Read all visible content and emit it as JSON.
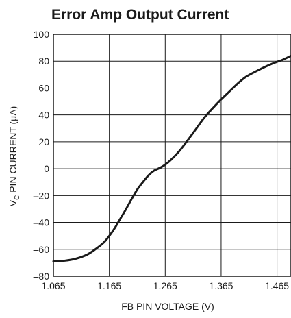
{
  "chart_data": {
    "type": "line",
    "title": "Error Amp Output Current",
    "xlabel": "FB PIN VOLTAGE (V)",
    "ylabel": {
      "prefix": "V",
      "subscript": "C",
      "suffix": " PIN CURRENT (μA)"
    },
    "xlim": [
      1.065,
      1.49
    ],
    "ylim": [
      -80,
      100
    ],
    "xticks": [
      1.065,
      1.165,
      1.265,
      1.365,
      1.465
    ],
    "xtick_labels": [
      "1.065",
      "1.165",
      "1.265",
      "1.365",
      "1.465"
    ],
    "yticks": [
      -80,
      -60,
      -40,
      -20,
      0,
      20,
      40,
      60,
      80,
      100
    ],
    "ytick_labels": [
      "–80",
      "–60",
      "–40",
      "–20",
      "0",
      "20",
      "40",
      "60",
      "80",
      "100"
    ],
    "grid": true,
    "series": [
      {
        "x": [
          1.065,
          1.085,
          1.105,
          1.125,
          1.14,
          1.155,
          1.165,
          1.175,
          1.185,
          1.195,
          1.205,
          1.215,
          1.225,
          1.235,
          1.245,
          1.255,
          1.265,
          1.275,
          1.29,
          1.305,
          1.32,
          1.335,
          1.35,
          1.365,
          1.38,
          1.395,
          1.41,
          1.43,
          1.45,
          1.465,
          1.475,
          1.49
        ],
        "y": [
          -69,
          -68.5,
          -67,
          -64,
          -60,
          -55,
          -50,
          -44,
          -37,
          -30,
          -22.5,
          -15.5,
          -10,
          -5,
          -1.5,
          0.5,
          3,
          6.5,
          13,
          21,
          29.5,
          38,
          45,
          51.5,
          57.5,
          63.5,
          68.5,
          73,
          77,
          79.5,
          81,
          84
        ]
      }
    ],
    "colors": {
      "line": "#1a1a1a",
      "grid": "#1a1a1a"
    }
  }
}
